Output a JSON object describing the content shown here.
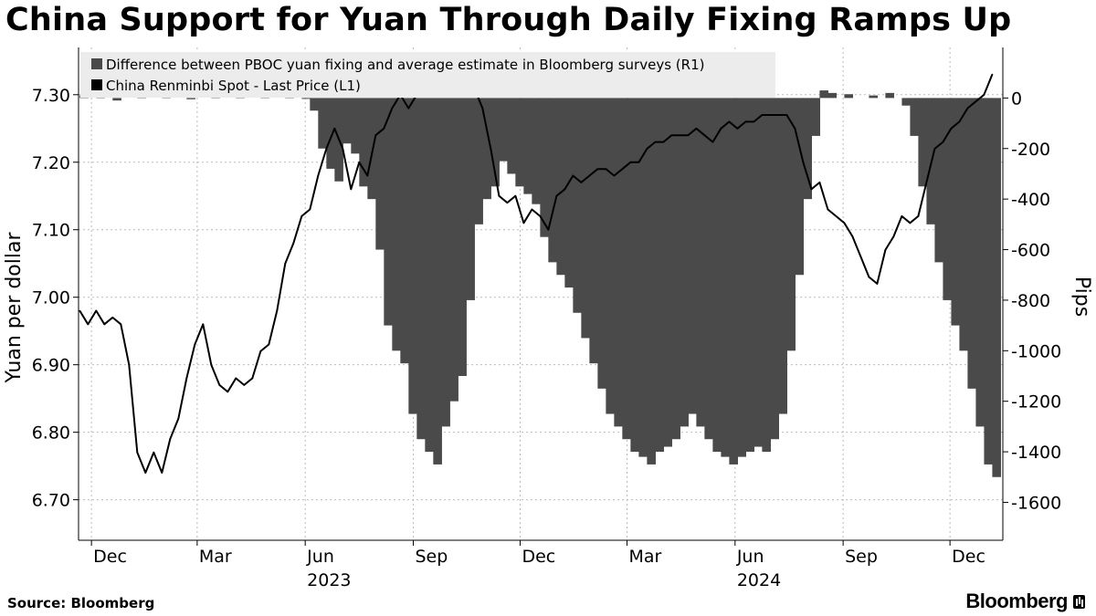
{
  "title": "China Support for Yuan Through Daily Fixing Ramps Up",
  "source": "Source: Bloomberg",
  "brand": "Bloomberg",
  "colors": {
    "bars": "#4a4a4a",
    "line": "#000000",
    "grid": "#bbbbbb"
  },
  "chart_data": {
    "type": "bar+line",
    "legend_position": "top-left",
    "grid": true,
    "x_ticks": [
      {
        "label": "Dec",
        "date": "2022-12-01"
      },
      {
        "label": "Mar",
        "date": "2023-03-01"
      },
      {
        "label": "Jun",
        "date": "2023-06-01"
      },
      {
        "label": "Sep",
        "date": "2023-09-01"
      },
      {
        "label": "Dec",
        "date": "2023-12-01"
      },
      {
        "label": "Mar",
        "date": "2024-03-01"
      },
      {
        "label": "Jun",
        "date": "2024-06-01"
      },
      {
        "label": "Sep",
        "date": "2024-09-01"
      },
      {
        "label": "Dec",
        "date": "2024-12-01"
      }
    ],
    "year_labels": [
      {
        "label": "2023",
        "date": "2023-06-01"
      },
      {
        "label": "2024",
        "date": "2024-06-01"
      }
    ],
    "x_range": [
      "2022-11-20",
      "2025-01-15"
    ],
    "left_axis": {
      "label": "Yuan per dollar",
      "range": [
        6.64,
        7.37
      ],
      "ticks": [
        6.7,
        6.8,
        6.9,
        7.0,
        7.1,
        7.2,
        7.3
      ],
      "tick_labels": [
        "6.70",
        "6.80",
        "6.90",
        "7.00",
        "7.10",
        "7.20",
        "7.30"
      ]
    },
    "right_axis": {
      "label": "Pips",
      "range": [
        -1750,
        200
      ],
      "ticks": [
        0,
        -200,
        -400,
        -600,
        -800,
        -1000,
        -1200,
        -1400,
        -1600
      ],
      "tick_labels": [
        "0",
        "-200",
        "-400",
        "-600",
        "-800",
        "-1000",
        "-1200",
        "-1400",
        "-1600"
      ]
    },
    "series": [
      {
        "name": "Difference between PBOC yuan fixing and average estimate in Bloomberg surveys (R1)",
        "type": "bar",
        "axis": "right",
        "points": [
          [
            "2022-11-21",
            10
          ],
          [
            "2022-12-05",
            20
          ],
          [
            "2022-12-19",
            -10
          ],
          [
            "2023-01-09",
            15
          ],
          [
            "2023-01-30",
            20
          ],
          [
            "2023-02-20",
            -5
          ],
          [
            "2023-03-13",
            10
          ],
          [
            "2023-04-03",
            25
          ],
          [
            "2023-04-24",
            15
          ],
          [
            "2023-05-15",
            20
          ],
          [
            "2023-05-29",
            0
          ],
          [
            "2023-06-05",
            -50
          ],
          [
            "2023-06-12",
            -200
          ],
          [
            "2023-06-19",
            -280
          ],
          [
            "2023-06-26",
            -330
          ],
          [
            "2023-07-03",
            -180
          ],
          [
            "2023-07-10",
            -220
          ],
          [
            "2023-07-17",
            -350
          ],
          [
            "2023-07-24",
            -400
          ],
          [
            "2023-07-31",
            -600
          ],
          [
            "2023-08-07",
            -900
          ],
          [
            "2023-08-14",
            -1000
          ],
          [
            "2023-08-21",
            -1050
          ],
          [
            "2023-08-28",
            -1250
          ],
          [
            "2023-09-04",
            -1350
          ],
          [
            "2023-09-11",
            -1400
          ],
          [
            "2023-09-18",
            -1450
          ],
          [
            "2023-09-25",
            -1300
          ],
          [
            "2023-10-02",
            -1200
          ],
          [
            "2023-10-09",
            -1100
          ],
          [
            "2023-10-16",
            -800
          ],
          [
            "2023-10-23",
            -500
          ],
          [
            "2023-10-30",
            -400
          ],
          [
            "2023-11-06",
            -350
          ],
          [
            "2023-11-13",
            -250
          ],
          [
            "2023-11-20",
            -300
          ],
          [
            "2023-11-27",
            -350
          ],
          [
            "2023-12-04",
            -380
          ],
          [
            "2023-12-11",
            -420
          ],
          [
            "2023-12-18",
            -550
          ],
          [
            "2023-12-25",
            -650
          ],
          [
            "2024-01-01",
            -700
          ],
          [
            "2024-01-08",
            -750
          ],
          [
            "2024-01-15",
            -850
          ],
          [
            "2024-01-22",
            -950
          ],
          [
            "2024-01-29",
            -1050
          ],
          [
            "2024-02-05",
            -1150
          ],
          [
            "2024-02-12",
            -1250
          ],
          [
            "2024-02-19",
            -1300
          ],
          [
            "2024-02-26",
            -1350
          ],
          [
            "2024-03-04",
            -1400
          ],
          [
            "2024-03-11",
            -1420
          ],
          [
            "2024-03-18",
            -1450
          ],
          [
            "2024-03-25",
            -1400
          ],
          [
            "2024-04-01",
            -1380
          ],
          [
            "2024-04-08",
            -1350
          ],
          [
            "2024-04-15",
            -1300
          ],
          [
            "2024-04-22",
            -1250
          ],
          [
            "2024-04-29",
            -1300
          ],
          [
            "2024-05-06",
            -1350
          ],
          [
            "2024-05-13",
            -1400
          ],
          [
            "2024-05-20",
            -1420
          ],
          [
            "2024-05-27",
            -1450
          ],
          [
            "2024-06-03",
            -1420
          ],
          [
            "2024-06-10",
            -1400
          ],
          [
            "2024-06-17",
            -1380
          ],
          [
            "2024-06-24",
            -1400
          ],
          [
            "2024-07-01",
            -1350
          ],
          [
            "2024-07-08",
            -1250
          ],
          [
            "2024-07-15",
            -1000
          ],
          [
            "2024-07-22",
            -700
          ],
          [
            "2024-07-29",
            -400
          ],
          [
            "2024-08-05",
            -150
          ],
          [
            "2024-08-12",
            30
          ],
          [
            "2024-08-19",
            20
          ],
          [
            "2024-09-02",
            15
          ],
          [
            "2024-09-23",
            10
          ],
          [
            "2024-10-07",
            20
          ],
          [
            "2024-10-21",
            -30
          ],
          [
            "2024-10-28",
            -150
          ],
          [
            "2024-11-04",
            -350
          ],
          [
            "2024-11-11",
            -500
          ],
          [
            "2024-11-18",
            -650
          ],
          [
            "2024-11-25",
            -800
          ],
          [
            "2024-12-02",
            -900
          ],
          [
            "2024-12-09",
            -1000
          ],
          [
            "2024-12-16",
            -1150
          ],
          [
            "2024-12-23",
            -1300
          ],
          [
            "2024-12-30",
            -1450
          ],
          [
            "2025-01-06",
            -1500
          ]
        ]
      },
      {
        "name": "China Renminbi Spot - Last Price (L1)",
        "type": "line",
        "axis": "left",
        "points": [
          [
            "2022-11-21",
            6.98
          ],
          [
            "2022-11-28",
            6.96
          ],
          [
            "2022-12-05",
            6.98
          ],
          [
            "2022-12-12",
            6.96
          ],
          [
            "2022-12-19",
            6.97
          ],
          [
            "2022-12-26",
            6.96
          ],
          [
            "2023-01-02",
            6.9
          ],
          [
            "2023-01-09",
            6.77
          ],
          [
            "2023-01-16",
            6.74
          ],
          [
            "2023-01-23",
            6.77
          ],
          [
            "2023-01-30",
            6.74
          ],
          [
            "2023-02-06",
            6.79
          ],
          [
            "2023-02-13",
            6.82
          ],
          [
            "2023-02-20",
            6.88
          ],
          [
            "2023-02-27",
            6.93
          ],
          [
            "2023-03-06",
            6.96
          ],
          [
            "2023-03-13",
            6.9
          ],
          [
            "2023-03-20",
            6.87
          ],
          [
            "2023-03-27",
            6.86
          ],
          [
            "2023-04-03",
            6.88
          ],
          [
            "2023-04-10",
            6.87
          ],
          [
            "2023-04-17",
            6.88
          ],
          [
            "2023-04-24",
            6.92
          ],
          [
            "2023-05-01",
            6.93
          ],
          [
            "2023-05-08",
            6.98
          ],
          [
            "2023-05-15",
            7.05
          ],
          [
            "2023-05-22",
            7.08
          ],
          [
            "2023-05-29",
            7.12
          ],
          [
            "2023-06-05",
            7.13
          ],
          [
            "2023-06-12",
            7.18
          ],
          [
            "2023-06-19",
            7.22
          ],
          [
            "2023-06-26",
            7.25
          ],
          [
            "2023-07-03",
            7.22
          ],
          [
            "2023-07-10",
            7.16
          ],
          [
            "2023-07-17",
            7.2
          ],
          [
            "2023-07-24",
            7.18
          ],
          [
            "2023-07-31",
            7.24
          ],
          [
            "2023-08-07",
            7.25
          ],
          [
            "2023-08-14",
            7.28
          ],
          [
            "2023-08-21",
            7.3
          ],
          [
            "2023-08-28",
            7.28
          ],
          [
            "2023-09-04",
            7.3
          ],
          [
            "2023-09-11",
            7.31
          ],
          [
            "2023-09-18",
            7.3
          ],
          [
            "2023-09-25",
            7.31
          ],
          [
            "2023-10-02",
            7.31
          ],
          [
            "2023-10-09",
            7.3
          ],
          [
            "2023-10-16",
            7.31
          ],
          [
            "2023-10-23",
            7.31
          ],
          [
            "2023-10-30",
            7.28
          ],
          [
            "2023-11-06",
            7.22
          ],
          [
            "2023-11-13",
            7.15
          ],
          [
            "2023-11-20",
            7.14
          ],
          [
            "2023-11-27",
            7.15
          ],
          [
            "2023-12-04",
            7.11
          ],
          [
            "2023-12-11",
            7.13
          ],
          [
            "2023-12-18",
            7.12
          ],
          [
            "2023-12-25",
            7.1
          ],
          [
            "2024-01-01",
            7.15
          ],
          [
            "2024-01-08",
            7.16
          ],
          [
            "2024-01-15",
            7.18
          ],
          [
            "2024-01-22",
            7.17
          ],
          [
            "2024-01-29",
            7.18
          ],
          [
            "2024-02-05",
            7.19
          ],
          [
            "2024-02-12",
            7.19
          ],
          [
            "2024-02-19",
            7.18
          ],
          [
            "2024-02-26",
            7.19
          ],
          [
            "2024-03-04",
            7.2
          ],
          [
            "2024-03-11",
            7.2
          ],
          [
            "2024-03-18",
            7.22
          ],
          [
            "2024-03-25",
            7.23
          ],
          [
            "2024-04-01",
            7.23
          ],
          [
            "2024-04-08",
            7.24
          ],
          [
            "2024-04-15",
            7.24
          ],
          [
            "2024-04-22",
            7.24
          ],
          [
            "2024-04-29",
            7.25
          ],
          [
            "2024-05-06",
            7.24
          ],
          [
            "2024-05-13",
            7.23
          ],
          [
            "2024-05-20",
            7.25
          ],
          [
            "2024-05-27",
            7.26
          ],
          [
            "2024-06-03",
            7.25
          ],
          [
            "2024-06-10",
            7.26
          ],
          [
            "2024-06-17",
            7.26
          ],
          [
            "2024-06-24",
            7.27
          ],
          [
            "2024-07-01",
            7.27
          ],
          [
            "2024-07-08",
            7.27
          ],
          [
            "2024-07-15",
            7.27
          ],
          [
            "2024-07-22",
            7.25
          ],
          [
            "2024-07-29",
            7.2
          ],
          [
            "2024-08-05",
            7.16
          ],
          [
            "2024-08-12",
            7.17
          ],
          [
            "2024-08-19",
            7.13
          ],
          [
            "2024-08-26",
            7.12
          ],
          [
            "2024-09-02",
            7.11
          ],
          [
            "2024-09-09",
            7.09
          ],
          [
            "2024-09-16",
            7.06
          ],
          [
            "2024-09-23",
            7.03
          ],
          [
            "2024-09-30",
            7.02
          ],
          [
            "2024-10-07",
            7.07
          ],
          [
            "2024-10-14",
            7.09
          ],
          [
            "2024-10-21",
            7.12
          ],
          [
            "2024-10-28",
            7.11
          ],
          [
            "2024-11-04",
            7.12
          ],
          [
            "2024-11-11",
            7.17
          ],
          [
            "2024-11-18",
            7.22
          ],
          [
            "2024-11-25",
            7.23
          ],
          [
            "2024-12-02",
            7.25
          ],
          [
            "2024-12-09",
            7.26
          ],
          [
            "2024-12-16",
            7.28
          ],
          [
            "2024-12-23",
            7.29
          ],
          [
            "2024-12-30",
            7.3
          ],
          [
            "2025-01-06",
            7.33
          ]
        ]
      }
    ]
  }
}
